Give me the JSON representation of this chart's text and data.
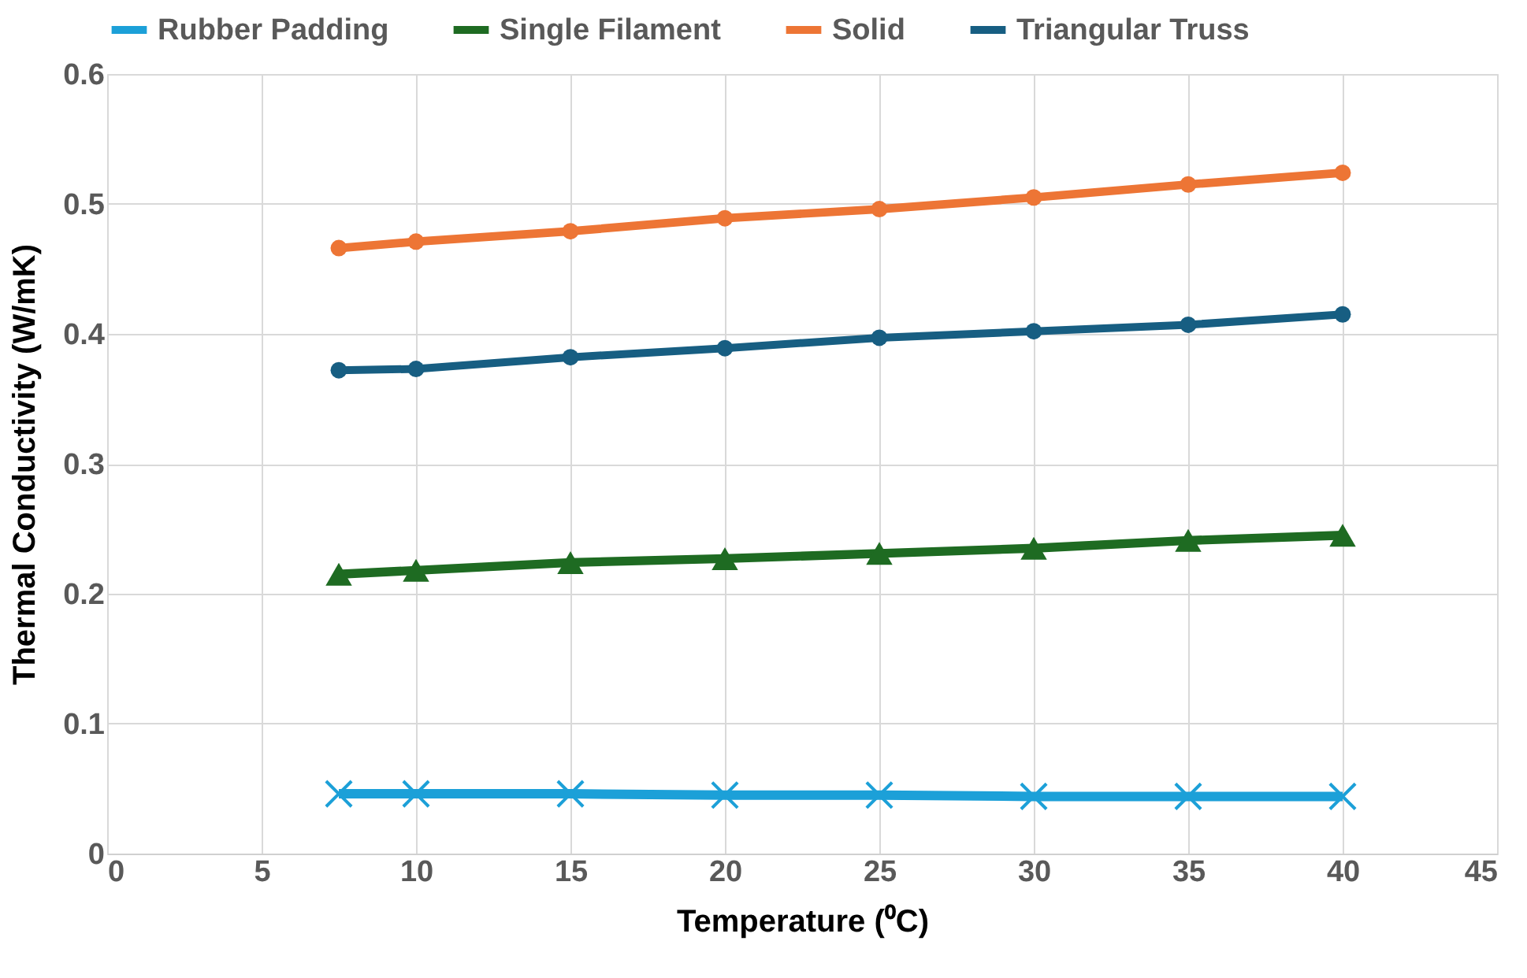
{
  "chart_data": {
    "type": "line",
    "xlabel": "Temperature (⁰C)",
    "ylabel": "Thermal Conductivity (W/mK)",
    "x": [
      7.5,
      10,
      15,
      20,
      25,
      30,
      35,
      40
    ],
    "series": [
      {
        "name": "Rubber Padding",
        "color": "#1ca0d8",
        "marker": "cross",
        "values": [
          0.046,
          0.046,
          0.046,
          0.045,
          0.045,
          0.044,
          0.044,
          0.044
        ]
      },
      {
        "name": "Single Filament",
        "color": "#1e6b22",
        "marker": "triangle",
        "values": [
          0.215,
          0.218,
          0.224,
          0.227,
          0.231,
          0.235,
          0.241,
          0.245
        ]
      },
      {
        "name": "Solid",
        "color": "#ed7535",
        "marker": "circle",
        "values": [
          0.466,
          0.471,
          0.479,
          0.489,
          0.496,
          0.505,
          0.515,
          0.524
        ]
      },
      {
        "name": "Triangular Truss",
        "color": "#175e82",
        "marker": "circle",
        "values": [
          0.372,
          0.373,
          0.382,
          0.389,
          0.397,
          0.402,
          0.407,
          0.415
        ]
      }
    ],
    "xlim": [
      0,
      45
    ],
    "xticks": [
      0,
      5,
      10,
      15,
      20,
      25,
      30,
      35,
      40,
      45
    ],
    "ylim": [
      0,
      0.6
    ],
    "yticks": [
      0,
      0.1,
      0.2,
      0.3,
      0.4,
      0.5,
      0.6
    ],
    "grid": true,
    "legend": "top"
  }
}
